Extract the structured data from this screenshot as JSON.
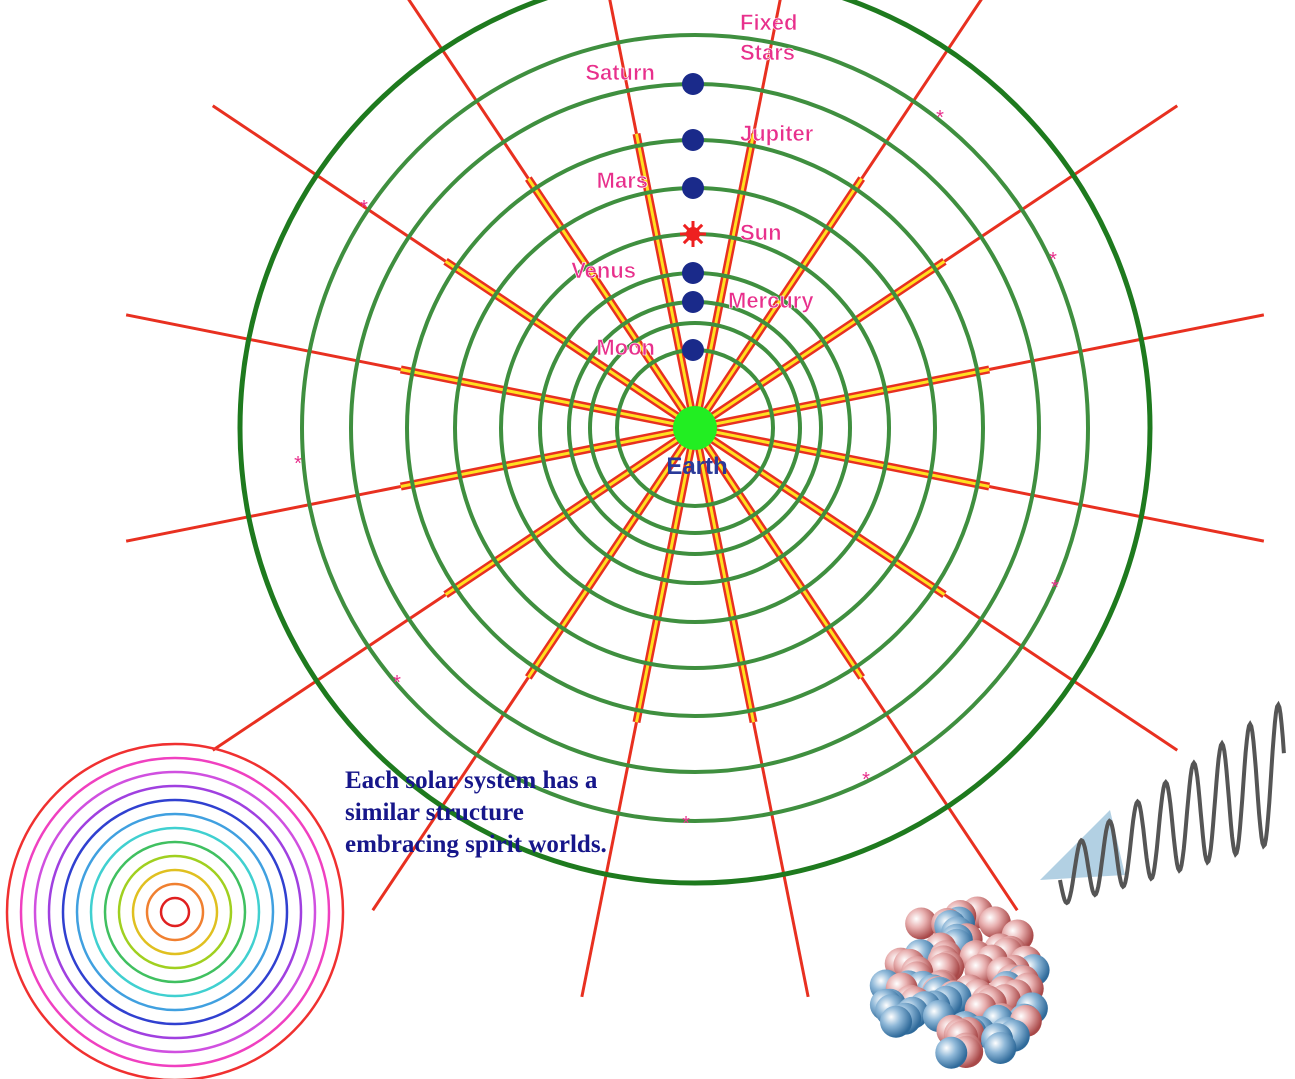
{
  "diagram": {
    "fixed_stars": [
      "Fixed",
      "Stars"
    ],
    "bodies": [
      {
        "label": "Saturn"
      },
      {
        "label": "Jupiter"
      },
      {
        "label": "Mars"
      },
      {
        "label": "Sun"
      },
      {
        "label": "Venus"
      },
      {
        "label": "Mercury"
      },
      {
        "label": "Moon"
      }
    ],
    "center": "Earth"
  },
  "caption": [
    "Each solar system has a",
    "similar structure",
    "embracing spirit worlds."
  ]
}
